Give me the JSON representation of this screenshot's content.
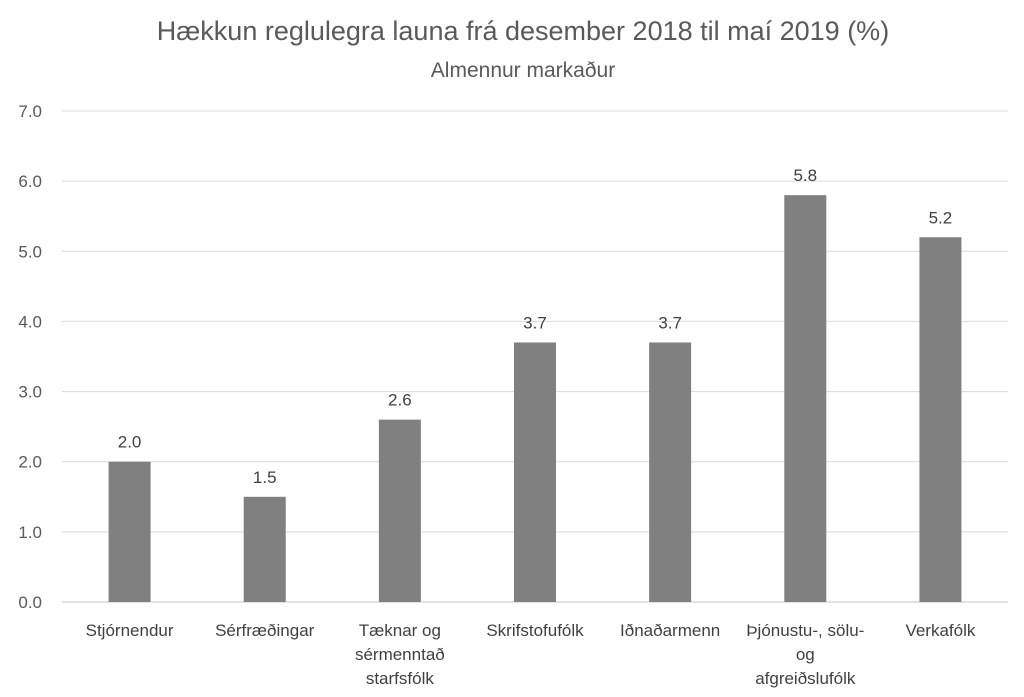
{
  "chart_data": {
    "type": "bar",
    "title": "Hækkun reglulegra launa frá desember 2018 til maí 2019 (%)",
    "subtitle": "Almennur markaður",
    "xlabel": "",
    "ylabel": "",
    "ylim": [
      0,
      7
    ],
    "yticks": [
      "0.0",
      "1.0",
      "2.0",
      "3.0",
      "4.0",
      "5.0",
      "6.0",
      "7.0"
    ],
    "grid": true,
    "legend": "none",
    "categories": [
      [
        "Stjórnendur"
      ],
      [
        "Sérfræðingar"
      ],
      [
        "Tæknar og",
        "sérmenntað",
        "starfsfólk"
      ],
      [
        "Skrifstofufólk"
      ],
      [
        "Iðnaðarmenn"
      ],
      [
        "Þjónustu-, sölu-",
        "og",
        "afgreiðslufólk"
      ],
      [
        "Verkafólk"
      ]
    ],
    "values": [
      2.0,
      1.5,
      2.6,
      3.7,
      3.7,
      5.8,
      5.2
    ],
    "data_labels": [
      "2.0",
      "1.5",
      "2.6",
      "3.7",
      "3.7",
      "5.8",
      "5.2"
    ],
    "colors": {
      "bar": "#808080",
      "grid": "#d9d9d9",
      "text": "#595959"
    }
  }
}
